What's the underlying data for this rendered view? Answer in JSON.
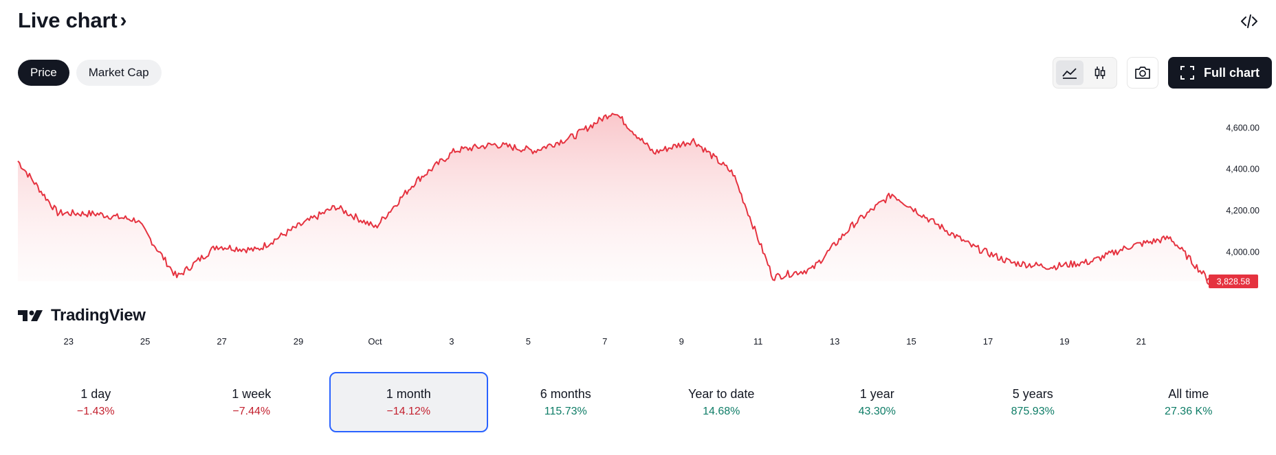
{
  "header": {
    "title": "Live chart"
  },
  "toggle": {
    "price_label": "Price",
    "market_cap_label": "Market Cap",
    "active": "Price"
  },
  "toolbar": {
    "full_chart_label": "Full chart"
  },
  "branding": {
    "logo_text": "TradingView"
  },
  "colors": {
    "line": "#e5323f",
    "fill_top": "#f9c4c8",
    "positive": "#0d7c66",
    "negative": "#c3202e",
    "selection": "#2962ff"
  },
  "chart_data": {
    "type": "area",
    "title": "",
    "xlabel": "",
    "ylabel": "",
    "ylim": [
      3860,
      4720
    ],
    "y_ticks": [
      4000,
      4200,
      4400,
      4600
    ],
    "y_tick_labels": [
      "4,000.00",
      "4,200.00",
      "4,400.00",
      "4,600.00"
    ],
    "x_tick_labels": [
      "23",
      "25",
      "27",
      "29",
      "Oct",
      "3",
      "5",
      "7",
      "9",
      "11",
      "13",
      "15",
      "17",
      "19",
      "21"
    ],
    "last_value_label": "3,828.58",
    "series": [
      {
        "x": [
          "Sep 22",
          "Sep 23",
          "Sep 24",
          "Sep 25",
          "Sep 26",
          "Sep 27",
          "Sep 28",
          "Sep 29",
          "Sep 30",
          "Oct 1",
          "Oct 2",
          "Oct 3",
          "Oct 4",
          "Oct 5",
          "Oct 6",
          "Oct 7",
          "Oct 8",
          "Oct 9",
          "Oct 10",
          "Oct 11",
          "Oct 12",
          "Oct 13",
          "Oct 14",
          "Oct 15",
          "Oct 16",
          "Oct 17",
          "Oct 18",
          "Oct 19",
          "Oct 20",
          "Oct 21",
          "Oct 22"
        ],
        "values": [
          4440,
          4190,
          4185,
          4155,
          3880,
          4030,
          4010,
          4120,
          4220,
          4120,
          4340,
          4490,
          4520,
          4490,
          4560,
          4680,
          4480,
          4540,
          4380,
          3880,
          3920,
          4130,
          4280,
          4150,
          4030,
          3950,
          3930,
          3955,
          4030,
          4070,
          3860
        ]
      }
    ]
  },
  "periods": [
    {
      "label": "1 day",
      "value": "−1.43%",
      "trend": "neg"
    },
    {
      "label": "1 week",
      "value": "−7.44%",
      "trend": "neg"
    },
    {
      "label": "1 month",
      "value": "−14.12%",
      "trend": "neg",
      "selected": true
    },
    {
      "label": "6 months",
      "value": "115.73%",
      "trend": "pos"
    },
    {
      "label": "Year to date",
      "value": "14.68%",
      "trend": "pos"
    },
    {
      "label": "1 year",
      "value": "43.30%",
      "trend": "pos"
    },
    {
      "label": "5 years",
      "value": "875.93%",
      "trend": "pos"
    },
    {
      "label": "All time",
      "value": "27.36 K%",
      "trend": "pos"
    }
  ]
}
